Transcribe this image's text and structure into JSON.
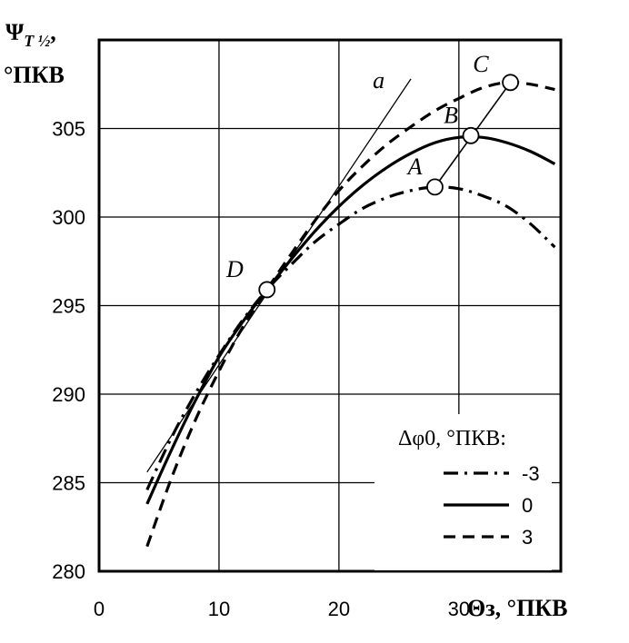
{
  "chart_data": {
    "type": "line",
    "y_title_main": "Ψ",
    "y_title_sub": "T ½",
    "y_title_unit": "°ПКВ",
    "x_title": "Θз, °ПКВ",
    "xlim": [
      0,
      38.5
    ],
    "ylim": [
      280,
      310
    ],
    "x_ticks": [
      "0",
      "10",
      "20",
      "30"
    ],
    "x_tick_values": [
      0,
      10,
      20,
      30
    ],
    "y_ticks": [
      "280",
      "285",
      "290",
      "295",
      "300",
      "305"
    ],
    "y_tick_values": [
      280,
      285,
      290,
      295,
      300,
      305
    ],
    "grid": true,
    "legend_position": "bottom-right",
    "legend_title": "Δφ0, °ПКВ:",
    "series": [
      {
        "name": "-3",
        "style": "dash-dot",
        "x": [
          4,
          6,
          8,
          10,
          12,
          14,
          16,
          18,
          20,
          22,
          24,
          26,
          28,
          30,
          32,
          34,
          36,
          38
        ],
        "y": [
          284.6,
          287.5,
          290.0,
          292.2,
          294.2,
          295.9,
          297.3,
          298.6,
          299.6,
          300.5,
          301.1,
          301.5,
          301.7,
          301.6,
          301.2,
          300.6,
          299.6,
          298.3
        ]
      },
      {
        "name": "0",
        "style": "solid",
        "x": [
          4,
          6,
          8,
          10,
          12,
          14,
          16,
          18,
          20,
          22,
          24,
          26,
          28,
          30,
          32,
          34,
          36,
          38
        ],
        "y": [
          283.8,
          286.8,
          289.6,
          292.1,
          294.1,
          295.9,
          297.6,
          299.2,
          300.6,
          301.8,
          302.8,
          303.6,
          304.2,
          304.5,
          304.5,
          304.2,
          303.7,
          303.0
        ]
      },
      {
        "name": "3",
        "style": "dashed",
        "x": [
          4,
          6,
          8,
          10,
          12,
          14,
          16,
          18,
          20,
          22,
          24,
          26,
          28,
          30,
          32,
          34,
          36,
          38
        ],
        "y": [
          281.4,
          285.2,
          288.5,
          291.3,
          293.8,
          295.9,
          297.9,
          299.8,
          301.5,
          302.9,
          304.1,
          305.1,
          306.0,
          306.7,
          307.3,
          307.6,
          307.5,
          307.2
        ]
      }
    ],
    "tangent_line": {
      "label": "a",
      "x": [
        4,
        26
      ],
      "y": [
        285.6,
        307.8
      ]
    },
    "points": [
      {
        "label": "A",
        "x": 28,
        "y": 301.7
      },
      {
        "label": "B",
        "x": 31,
        "y": 304.6
      },
      {
        "label": "C",
        "x": 34.3,
        "y": 307.6
      },
      {
        "label": "D",
        "x": 14,
        "y": 295.9
      }
    ],
    "connector_line": [
      "A",
      "C"
    ]
  }
}
